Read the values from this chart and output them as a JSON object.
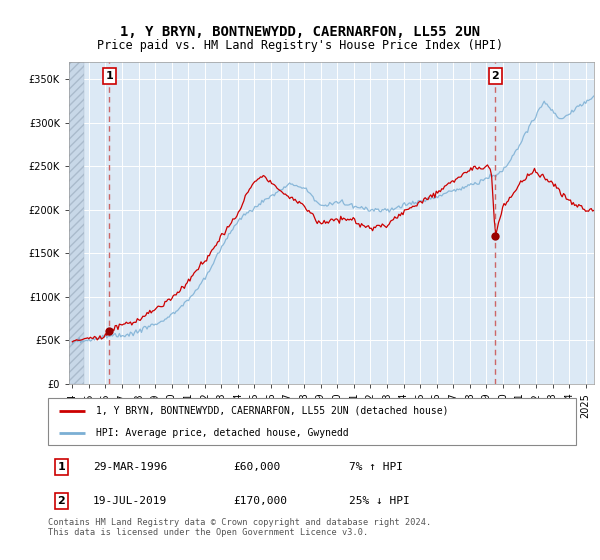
{
  "title": "1, Y BRYN, BONTNEWYDD, CAERNARFON, LL55 2UN",
  "subtitle": "Price paid vs. HM Land Registry's House Price Index (HPI)",
  "background_color": "#dce9f5",
  "hatch_color": "#c8d8e8",
  "grid_color": "#ffffff",
  "sale1_date": 1996.24,
  "sale1_price": 60000,
  "sale1_label": "1",
  "sale2_date": 2019.54,
  "sale2_price": 170000,
  "sale2_label": "2",
  "ylim_min": 0,
  "ylim_max": 370000,
  "xlim_min": 1993.8,
  "xlim_max": 2025.5,
  "legend_line1": "1, Y BRYN, BONTNEWYDD, CAERNARFON, LL55 2UN (detached house)",
  "legend_line2": "HPI: Average price, detached house, Gwynedd",
  "table_row1": [
    "1",
    "29-MAR-1996",
    "£60,000",
    "7% ↑ HPI"
  ],
  "table_row2": [
    "2",
    "19-JUL-2019",
    "£170,000",
    "25% ↓ HPI"
  ],
  "footer": "Contains HM Land Registry data © Crown copyright and database right 2024.\nThis data is licensed under the Open Government Licence v3.0.",
  "red_line_color": "#cc0000",
  "blue_line_color": "#7bafd4",
  "sale_marker_color": "#990000",
  "dashed_line_color": "#cc6666"
}
